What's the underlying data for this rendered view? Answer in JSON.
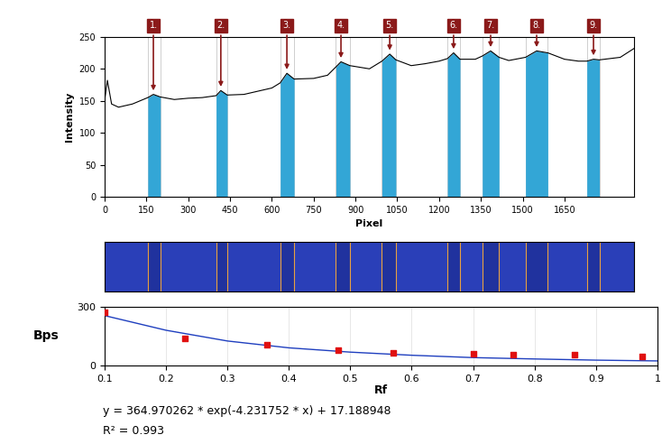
{
  "chart_data": [
    {
      "type": "line",
      "x_label": "Pixel",
      "y_label": "Intensity",
      "color": "#000000",
      "x": [
        0,
        10,
        25,
        50,
        100,
        155,
        175,
        200,
        250,
        300,
        350,
        400,
        417,
        440,
        500,
        550,
        600,
        630,
        654,
        680,
        750,
        800,
        830,
        848,
        880,
        950,
        995,
        1023,
        1045,
        1100,
        1150,
        1200,
        1230,
        1252,
        1275,
        1330,
        1355,
        1385,
        1415,
        1450,
        1510,
        1550,
        1590,
        1650,
        1700,
        1730,
        1754,
        1775,
        1850,
        1900
      ],
      "values": [
        150,
        182,
        145,
        140,
        145,
        155,
        160,
        156,
        152,
        154,
        155,
        158,
        166,
        159,
        160,
        165,
        170,
        178,
        193,
        184,
        185,
        190,
        203,
        211,
        205,
        200,
        212,
        223,
        214,
        205,
        208,
        212,
        216,
        225,
        215,
        215,
        220,
        228,
        218,
        213,
        218,
        228,
        225,
        215,
        212,
        212,
        215,
        214,
        218,
        232
      ],
      "xlim": [
        0,
        1900
      ],
      "ylim": [
        0,
        250
      ],
      "xticks": [
        0,
        150,
        300,
        450,
        600,
        750,
        900,
        1050,
        1200,
        1350,
        1500,
        1650
      ],
      "yticks": [
        0,
        50,
        100,
        150,
        200,
        250
      ],
      "peaks": [
        {
          "label": "1.",
          "x": 175,
          "start": 155,
          "end": 200,
          "color": "#33a6d6"
        },
        {
          "label": "2.",
          "x": 417,
          "start": 400,
          "end": 440,
          "color": "#33a6d6"
        },
        {
          "label": "3.",
          "x": 654,
          "start": 630,
          "end": 680,
          "color": "#33a6d6"
        },
        {
          "label": "4.",
          "x": 848,
          "start": 830,
          "end": 880,
          "color": "#33a6d6"
        },
        {
          "label": "5.",
          "x": 1023,
          "start": 995,
          "end": 1045,
          "color": "#33a6d6"
        },
        {
          "label": "6.",
          "x": 1252,
          "start": 1230,
          "end": 1275,
          "color": "#33a6d6"
        },
        {
          "label": "7.",
          "x": 1385,
          "start": 1355,
          "end": 1415,
          "color": "#33a6d6"
        },
        {
          "label": "8.",
          "x": 1550,
          "start": 1510,
          "end": 1590,
          "color": "#33a6d6"
        },
        {
          "label": "9.",
          "x": 1754,
          "start": 1730,
          "end": 1775,
          "color": "#33a6d6"
        }
      ]
    },
    {
      "type": "scatter",
      "x_label": "Rf",
      "y_label": "Bps",
      "xlim": [
        0.1,
        1
      ],
      "ylim": [
        0,
        300
      ],
      "xticks": [
        0.1,
        0.2,
        0.3,
        0.4,
        0.5,
        0.6,
        0.7,
        0.8,
        0.9,
        1
      ],
      "yticks": [
        0,
        300
      ],
      "grid": true,
      "annotations": [
        "y = 364.970262 * exp(-4.231752 * x) + 17.188948",
        "R² = 0.993"
      ],
      "series": [
        {
          "type": "line",
          "color": "#1f3fbf",
          "line_style": "solid",
          "x": [
            0.1,
            0.2,
            0.3,
            0.4,
            0.5,
            0.6,
            0.7,
            0.8,
            0.9,
            1
          ],
          "values": [
            255,
            180,
            125,
            90,
            68,
            52,
            40,
            33,
            27,
            23
          ]
        },
        {
          "type": "scatter",
          "color": "#e01010",
          "marker": "square",
          "x": [
            0.1,
            0.23,
            0.365,
            0.48,
            0.57,
            0.7,
            0.765,
            0.865,
            0.975
          ],
          "values": [
            270,
            140,
            105,
            78,
            62,
            58,
            55,
            55,
            45
          ]
        }
      ]
    }
  ]
}
